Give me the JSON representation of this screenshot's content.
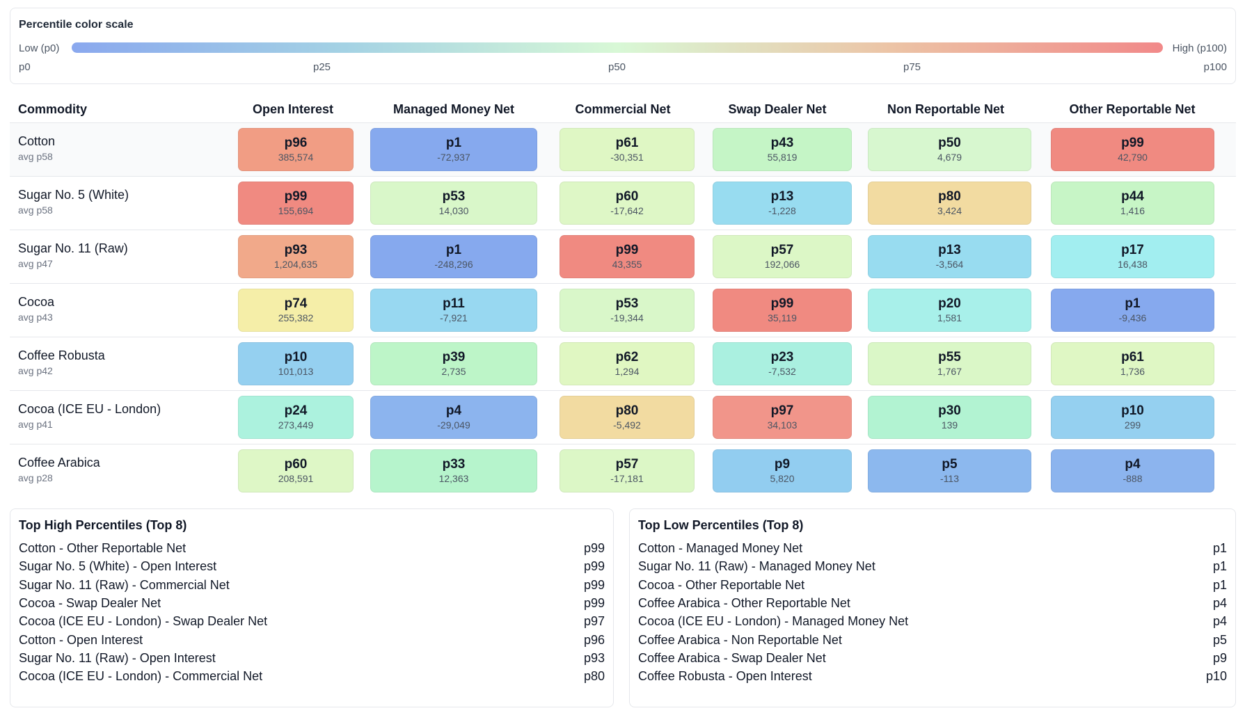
{
  "scale": {
    "title": "Percentile color scale",
    "low_label": "Low (p0)",
    "high_label": "High (p100)",
    "ticks": [
      "p0",
      "p25",
      "p50",
      "p75",
      "p100"
    ],
    "colors": [
      "#8aa8ee",
      "#a4d2e4",
      "#d8f8d6",
      "#ecc4a6",
      "#f18989"
    ]
  },
  "table": {
    "header": {
      "commodity": "Commodity",
      "columns": [
        "Open Interest",
        "Managed Money Net",
        "Commercial Net",
        "Swap Dealer Net",
        "Non Reportable Net",
        "Other Reportable Net"
      ]
    },
    "rows": [
      {
        "name": "Cotton",
        "avg": "avg p58",
        "cells": [
          {
            "p": "p96",
            "v": "385,574",
            "color": "#f19d84"
          },
          {
            "p": "p1",
            "v": "-72,937",
            "color": "#86a9ee"
          },
          {
            "p": "p61",
            "v": "-30,351",
            "color": "#dff7c4"
          },
          {
            "p": "p43",
            "v": "55,819",
            "color": "#c5f5c6"
          },
          {
            "p": "p50",
            "v": "4,679",
            "color": "#d7f7cf"
          },
          {
            "p": "p99",
            "v": "42,790",
            "color": "#f08a81"
          }
        ]
      },
      {
        "name": "Sugar No. 5 (White)",
        "avg": "avg p58",
        "cells": [
          {
            "p": "p99",
            "v": "155,694",
            "color": "#f08a81"
          },
          {
            "p": "p53",
            "v": "14,030",
            "color": "#d9f7c9"
          },
          {
            "p": "p60",
            "v": "-17,642",
            "color": "#def7c6"
          },
          {
            "p": "p13",
            "v": "-1,228",
            "color": "#98dcf0"
          },
          {
            "p": "p80",
            "v": "3,424",
            "color": "#f2dba1"
          },
          {
            "p": "p44",
            "v": "1,416",
            "color": "#c7f5c6"
          }
        ]
      },
      {
        "name": "Sugar No. 11 (Raw)",
        "avg": "avg p47",
        "cells": [
          {
            "p": "p93",
            "v": "1,204,635",
            "color": "#f1a98a"
          },
          {
            "p": "p1",
            "v": "-248,296",
            "color": "#86a9ee"
          },
          {
            "p": "p99",
            "v": "43,355",
            "color": "#f08a81"
          },
          {
            "p": "p57",
            "v": "192,066",
            "color": "#dcf7c6"
          },
          {
            "p": "p13",
            "v": "-3,564",
            "color": "#98dcf0"
          },
          {
            "p": "p17",
            "v": "16,438",
            "color": "#a2eef0"
          }
        ]
      },
      {
        "name": "Cocoa",
        "avg": "avg p43",
        "cells": [
          {
            "p": "p74",
            "v": "255,382",
            "color": "#f5eea8"
          },
          {
            "p": "p11",
            "v": "-7,921",
            "color": "#98d8f1"
          },
          {
            "p": "p53",
            "v": "-19,344",
            "color": "#d9f7c9"
          },
          {
            "p": "p99",
            "v": "35,119",
            "color": "#f08a81"
          },
          {
            "p": "p20",
            "v": "1,581",
            "color": "#a8f0ea"
          },
          {
            "p": "p1",
            "v": "-9,436",
            "color": "#86a9ee"
          }
        ]
      },
      {
        "name": "Coffee Robusta",
        "avg": "avg p42",
        "cells": [
          {
            "p": "p10",
            "v": "101,013",
            "color": "#95d0f0"
          },
          {
            "p": "p39",
            "v": "2,735",
            "color": "#bdf5c8"
          },
          {
            "p": "p62",
            "v": "1,294",
            "color": "#e0f7c2"
          },
          {
            "p": "p23",
            "v": "-7,532",
            "color": "#aaf0e0"
          },
          {
            "p": "p55",
            "v": "1,767",
            "color": "#daf7c7"
          },
          {
            "p": "p61",
            "v": "1,736",
            "color": "#dff7c4"
          }
        ]
      },
      {
        "name": "Cocoa (ICE EU - London)",
        "avg": "avg p41",
        "cells": [
          {
            "p": "p24",
            "v": "273,449",
            "color": "#acf2de"
          },
          {
            "p": "p4",
            "v": "-29,049",
            "color": "#8cb4ee"
          },
          {
            "p": "p80",
            "v": "-5,492",
            "color": "#f2dba1"
          },
          {
            "p": "p97",
            "v": "34,103",
            "color": "#f1958a"
          },
          {
            "p": "p30",
            "v": "139",
            "color": "#b2f3d2"
          },
          {
            "p": "p10",
            "v": "299",
            "color": "#95d0f0"
          }
        ]
      },
      {
        "name": "Coffee Arabica",
        "avg": "avg p28",
        "cells": [
          {
            "p": "p60",
            "v": "208,591",
            "color": "#def7c6"
          },
          {
            "p": "p33",
            "v": "12,363",
            "color": "#b6f4cc"
          },
          {
            "p": "p57",
            "v": "-17,181",
            "color": "#dcf7c6"
          },
          {
            "p": "p9",
            "v": "5,820",
            "color": "#92cdf0"
          },
          {
            "p": "p5",
            "v": "-113",
            "color": "#8cb8ee"
          },
          {
            "p": "p4",
            "v": "-888",
            "color": "#8cb4ee"
          }
        ]
      }
    ]
  },
  "top_high": {
    "title": "Top High Percentiles (Top 8)",
    "items": [
      {
        "label": "Cotton - Other Reportable Net",
        "value": "p99"
      },
      {
        "label": "Sugar No. 5 (White) - Open Interest",
        "value": "p99"
      },
      {
        "label": "Sugar No. 11 (Raw) - Commercial Net",
        "value": "p99"
      },
      {
        "label": "Cocoa - Swap Dealer Net",
        "value": "p99"
      },
      {
        "label": "Cocoa (ICE EU - London) - Swap Dealer Net",
        "value": "p97"
      },
      {
        "label": "Cotton - Open Interest",
        "value": "p96"
      },
      {
        "label": "Sugar No. 11 (Raw) - Open Interest",
        "value": "p93"
      },
      {
        "label": "Cocoa (ICE EU - London) - Commercial Net",
        "value": "p80"
      }
    ]
  },
  "top_low": {
    "title": "Top Low Percentiles (Top 8)",
    "items": [
      {
        "label": "Cotton - Managed Money Net",
        "value": "p1"
      },
      {
        "label": "Sugar No. 11 (Raw) - Managed Money Net",
        "value": "p1"
      },
      {
        "label": "Cocoa - Other Reportable Net",
        "value": "p1"
      },
      {
        "label": "Coffee Arabica - Other Reportable Net",
        "value": "p4"
      },
      {
        "label": "Cocoa (ICE EU - London) - Managed Money Net",
        "value": "p4"
      },
      {
        "label": "Coffee Arabica - Non Reportable Net",
        "value": "p5"
      },
      {
        "label": "Coffee Arabica - Swap Dealer Net",
        "value": "p9"
      },
      {
        "label": "Coffee Robusta - Open Interest",
        "value": "p10"
      }
    ]
  }
}
